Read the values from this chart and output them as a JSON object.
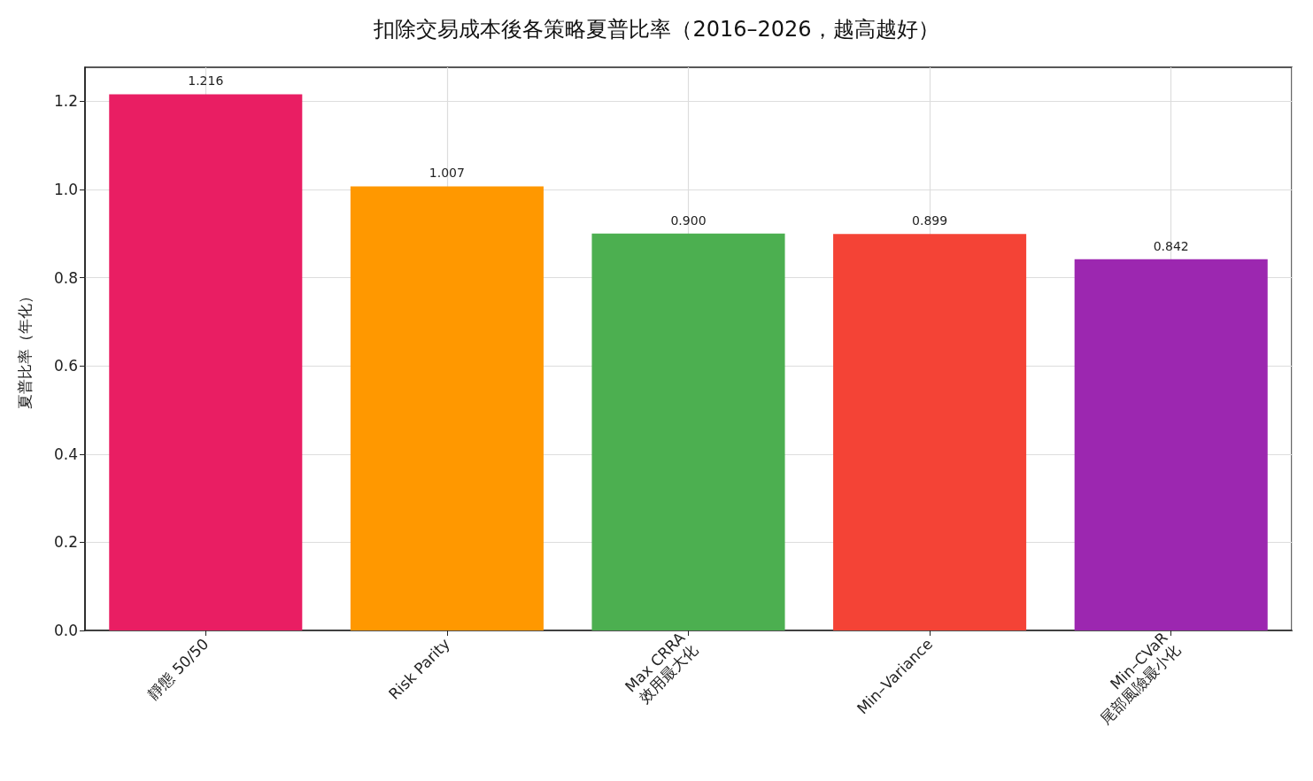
{
  "chart_data": {
    "type": "bar",
    "title": "扣除交易成本後各策略夏普比率（2016–2026，越高越好）",
    "ylabel": "夏普比率（年化）",
    "categories": [
      "靜態 50/50",
      "Risk Parity",
      "Max CRRA\n效用最大化",
      "Min–Variance",
      "Min–CVaR\n尾部風險最小化"
    ],
    "values": [
      1.216,
      1.007,
      0.9,
      0.899,
      0.842
    ],
    "colors": [
      "#e91e63",
      "#ff9800",
      "#4caf50",
      "#f44336",
      "#9c27b0"
    ],
    "value_labels": [
      "1.216",
      "1.007",
      "0.900",
      "0.899",
      "0.842"
    ],
    "ylim": [
      0,
      1.277
    ],
    "yticks": [
      {
        "value": 0,
        "label": "0.0"
      },
      0.2,
      0.4,
      0.6,
      0.8,
      {
        "value": 1,
        "label": "1.0"
      },
      1.2
    ],
    "grid": true
  }
}
